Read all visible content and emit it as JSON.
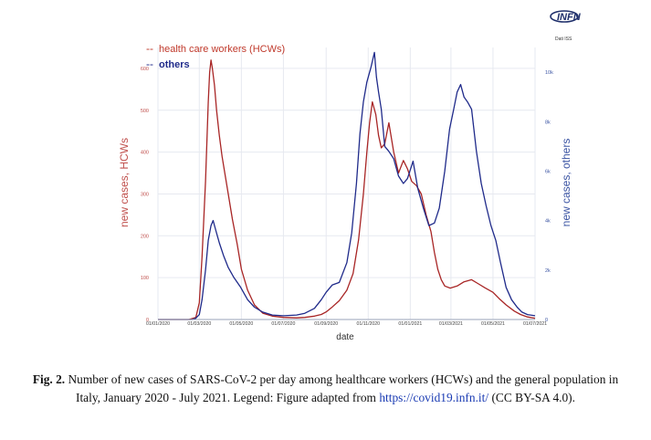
{
  "logo": {
    "name": "INFN",
    "source_note": "Dati ISS"
  },
  "caption": {
    "label": "Fig. 2.",
    "text": "Number of new cases of SARS-CoV-2 per day among healthcare workers (HCWs) and the general population in Italy, January 2020 - July 2021. Legend: Figure adapted from",
    "link": "https://covid19.infn.it/",
    "license": "(CC BY-SA 4.0)."
  },
  "chart_data": {
    "type": "line",
    "xlabel": "date",
    "ylabel_left": "new cases, HCWs",
    "ylabel_right": "new cases, others",
    "xlim": [
      "2020-01-01",
      "2021-07-01"
    ],
    "ylim_left": [
      0,
      650
    ],
    "ylim_right": [
      0,
      11000
    ],
    "x_ticks": [
      "01/01/2020",
      "01/03/2020",
      "01/05/2020",
      "01/07/2020",
      "01/09/2020",
      "01/11/2020",
      "01/01/2021",
      "01/03/2021",
      "01/05/2021",
      "01/07/2021"
    ],
    "y_ticks_left": [
      "0",
      "100",
      "200",
      "300",
      "400",
      "500",
      "600"
    ],
    "y_ticks_right": [
      "0",
      "2k",
      "4k",
      "6k",
      "8k",
      "10k"
    ],
    "grid": true,
    "legend_position": "top-left",
    "series": [
      {
        "name": "health care workers (HCWs)",
        "axis": "left",
        "color": "#a82525",
        "x": [
          "2020-01-01",
          "2020-02-15",
          "2020-02-25",
          "2020-03-01",
          "2020-03-05",
          "2020-03-10",
          "2020-03-14",
          "2020-03-16",
          "2020-03-18",
          "2020-03-20",
          "2020-03-23",
          "2020-03-26",
          "2020-03-30",
          "2020-04-03",
          "2020-04-07",
          "2020-04-12",
          "2020-04-18",
          "2020-04-25",
          "2020-05-01",
          "2020-05-10",
          "2020-05-20",
          "2020-06-01",
          "2020-06-15",
          "2020-07-01",
          "2020-07-20",
          "2020-08-01",
          "2020-08-15",
          "2020-08-25",
          "2020-09-01",
          "2020-09-10",
          "2020-09-20",
          "2020-10-01",
          "2020-10-10",
          "2020-10-18",
          "2020-10-25",
          "2020-10-30",
          "2020-11-03",
          "2020-11-07",
          "2020-11-12",
          "2020-11-16",
          "2020-11-20",
          "2020-11-25",
          "2020-12-01",
          "2020-12-08",
          "2020-12-15",
          "2020-12-22",
          "2020-12-28",
          "2021-01-03",
          "2021-01-10",
          "2021-01-17",
          "2021-01-24",
          "2021-01-31",
          "2021-02-05",
          "2021-02-10",
          "2021-02-15",
          "2021-02-20",
          "2021-02-28",
          "2021-03-10",
          "2021-03-20",
          "2021-03-31",
          "2021-04-10",
          "2021-04-20",
          "2021-05-01",
          "2021-05-10",
          "2021-05-20",
          "2021-06-01",
          "2021-06-10",
          "2021-06-20",
          "2021-07-01"
        ],
        "values": [
          0,
          0,
          5,
          40,
          150,
          330,
          520,
          590,
          620,
          600,
          560,
          500,
          440,
          390,
          350,
          300,
          240,
          180,
          120,
          70,
          35,
          15,
          8,
          5,
          4,
          5,
          8,
          12,
          18,
          30,
          45,
          70,
          110,
          190,
          300,
          400,
          470,
          520,
          490,
          440,
          410,
          420,
          470,
          400,
          350,
          380,
          360,
          330,
          320,
          300,
          250,
          210,
          160,
          120,
          95,
          80,
          75,
          80,
          90,
          95,
          85,
          75,
          65,
          50,
          35,
          20,
          12,
          6,
          3
        ]
      },
      {
        "name": "others",
        "axis": "right",
        "color": "#1f2a8a",
        "x": [
          "2020-01-01",
          "2020-02-20",
          "2020-02-25",
          "2020-03-01",
          "2020-03-05",
          "2020-03-10",
          "2020-03-14",
          "2020-03-18",
          "2020-03-21",
          "2020-03-25",
          "2020-03-30",
          "2020-04-05",
          "2020-04-12",
          "2020-04-20",
          "2020-04-30",
          "2020-05-10",
          "2020-05-20",
          "2020-06-01",
          "2020-06-15",
          "2020-07-01",
          "2020-07-20",
          "2020-08-01",
          "2020-08-15",
          "2020-08-25",
          "2020-09-01",
          "2020-09-10",
          "2020-09-20",
          "2020-10-01",
          "2020-10-08",
          "2020-10-15",
          "2020-10-20",
          "2020-10-25",
          "2020-10-30",
          "2020-11-05",
          "2020-11-10",
          "2020-11-13",
          "2020-11-16",
          "2020-11-20",
          "2020-11-25",
          "2020-12-01",
          "2020-12-08",
          "2020-12-15",
          "2020-12-22",
          "2020-12-28",
          "2021-01-05",
          "2021-01-12",
          "2021-01-20",
          "2021-01-28",
          "2021-02-05",
          "2021-02-12",
          "2021-02-20",
          "2021-02-27",
          "2021-03-05",
          "2021-03-10",
          "2021-03-15",
          "2021-03-20",
          "2021-03-25",
          "2021-03-31",
          "2021-04-07",
          "2021-04-14",
          "2021-04-21",
          "2021-04-28",
          "2021-05-05",
          "2021-05-12",
          "2021-05-20",
          "2021-05-28",
          "2021-06-05",
          "2021-06-12",
          "2021-06-20",
          "2021-07-01"
        ],
        "values": [
          0,
          0,
          50,
          200,
          800,
          2000,
          3200,
          3800,
          4000,
          3600,
          3100,
          2600,
          2100,
          1700,
          1300,
          800,
          500,
          300,
          180,
          150,
          180,
          250,
          450,
          800,
          1100,
          1400,
          1500,
          2300,
          3500,
          5500,
          7500,
          8800,
          9600,
          10200,
          10800,
          9800,
          9200,
          8500,
          7000,
          6800,
          6500,
          5800,
          5500,
          5700,
          6400,
          5300,
          4500,
          3800,
          3900,
          4500,
          6000,
          7700,
          8500,
          9200,
          9500,
          9000,
          8800,
          8500,
          6800,
          5500,
          4600,
          3800,
          3200,
          2300,
          1300,
          800,
          500,
          300,
          200,
          150
        ]
      }
    ]
  }
}
